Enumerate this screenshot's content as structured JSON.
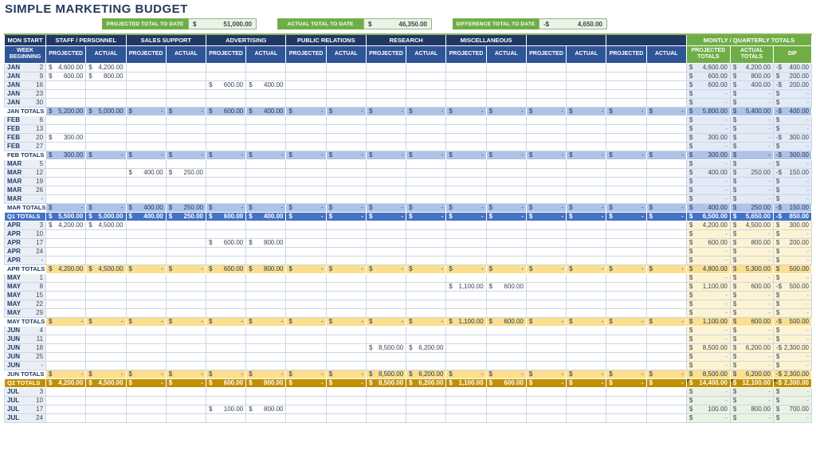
{
  "page": {
    "title": "SIMPLE MARKETING BUDGET"
  },
  "summary": [
    {
      "label": "PROJECTED TOTAL TO DATE",
      "currency": "$",
      "value": "51,000.00"
    },
    {
      "label": "ACTUAL TOTAL TO DATE",
      "currency": "$",
      "value": "46,350.00"
    },
    {
      "label": "DIFFERENCE TOTAL TO DATE",
      "currency": "-$",
      "value": "4,650.00"
    }
  ],
  "colors": {
    "header_navy": "#1F3864",
    "subheader_blue": "#2F5597",
    "accent_green": "#6FAE46",
    "q1_total_row": "#AFC3E7",
    "q1_quarter_row": "#4472C4",
    "q2_total_row": "#FBDF8E",
    "q2_quarter_row": "#BF9000",
    "q1_tint": "#E2EAF6",
    "q2_tint": "#FDF3D2",
    "q3_tint": "#EAF2E3"
  },
  "table": {
    "corner_header": {
      "line1": "MON START",
      "line2": "WEEK BEGINNING"
    },
    "groups": [
      "STAFF / PERSONNEL",
      "SALES SUPPORT",
      "ADVERTISING",
      "PUBLIC RELATIONS",
      "RESEARCH",
      "MISCELLANEOUS",
      "",
      ""
    ],
    "sub_headers": {
      "projected": "PROJECTED",
      "actual": "ACTUAL"
    },
    "totals_header": {
      "label": "MONTLY / QUARTERLY TOTALS",
      "columns": [
        "PROJECTED TOTALS",
        "ACTUAL TOTALS",
        "DIF"
      ]
    },
    "rows": [
      {
        "m": "JAN",
        "d": "2",
        "type": "week",
        "q": "q1",
        "fill": "",
        "cells": {
          "0": "4,600.00",
          "1": "4,200.00"
        },
        "totals": [
          "4,600.00",
          "4,200.00",
          "-400.00"
        ]
      },
      {
        "m": "JAN",
        "d": "9",
        "type": "week",
        "q": "q1",
        "fill": "",
        "cells": {
          "0": "600.00",
          "1": "800.00"
        },
        "totals": [
          "600.00",
          "800.00",
          "200.00"
        ]
      },
      {
        "m": "JAN",
        "d": "16",
        "type": "week",
        "q": "q1",
        "fill": "",
        "cells": {
          "4": "600.00",
          "5": "400.00"
        },
        "totals": [
          "600.00",
          "400.00",
          "-200.00"
        ]
      },
      {
        "m": "JAN",
        "d": "23",
        "type": "week",
        "q": "q1",
        "fill": "",
        "cells": {},
        "totals": [
          "-",
          "-",
          "-"
        ]
      },
      {
        "m": "JAN",
        "d": "30",
        "type": "week",
        "q": "q1",
        "fill": "",
        "cells": {},
        "totals": [
          "-",
          "-",
          "-"
        ]
      },
      {
        "m": "JAN TOTALS",
        "d": "",
        "type": "month",
        "q": "q1",
        "fill": "-",
        "cells": {
          "0": "5,200.00",
          "1": "5,000.00",
          "4": "600.00",
          "5": "400.00"
        },
        "totals": [
          "5,800.00",
          "5,400.00",
          "-400.00"
        ]
      },
      {
        "m": "FEB",
        "d": "6",
        "type": "week",
        "q": "q1",
        "fill": "",
        "cells": {},
        "totals": [
          "-",
          "-",
          "-"
        ]
      },
      {
        "m": "FEB",
        "d": "13",
        "type": "week",
        "q": "q1",
        "fill": "",
        "cells": {},
        "totals": [
          "-",
          "-",
          "-"
        ]
      },
      {
        "m": "FEB",
        "d": "20",
        "type": "week",
        "q": "q1",
        "fill": "",
        "cells": {
          "0": "300.00"
        },
        "totals": [
          "300.00",
          "-",
          "-300.00"
        ]
      },
      {
        "m": "FEB",
        "d": "27",
        "type": "week",
        "q": "q1",
        "fill": "",
        "cells": {},
        "totals": [
          "-",
          "-",
          "-"
        ]
      },
      {
        "m": "FEB TOTALS",
        "d": "",
        "type": "month",
        "q": "q1",
        "fill": "-",
        "cells": {
          "0": "300.00"
        },
        "totals": [
          "300.00",
          "-",
          "-300.00"
        ]
      },
      {
        "m": "MAR",
        "d": "5",
        "type": "week",
        "q": "q1",
        "fill": "",
        "cells": {},
        "totals": [
          "-",
          "-",
          "-"
        ]
      },
      {
        "m": "MAR",
        "d": "12",
        "type": "week",
        "q": "q1",
        "fill": "",
        "cells": {
          "2": "400.00",
          "3": "250.00"
        },
        "totals": [
          "400.00",
          "250.00",
          "-150.00"
        ]
      },
      {
        "m": "MAR",
        "d": "19",
        "type": "week",
        "q": "q1",
        "fill": "",
        "cells": {},
        "totals": [
          "-",
          "-",
          "-"
        ]
      },
      {
        "m": "MAR",
        "d": "26",
        "type": "week",
        "q": "q1",
        "fill": "",
        "cells": {},
        "totals": [
          "-",
          "-",
          "-"
        ]
      },
      {
        "m": "MAR",
        "d": "-",
        "type": "week",
        "q": "q1",
        "fill": "",
        "cells": {},
        "totals": [
          "-",
          "-",
          "-"
        ]
      },
      {
        "m": "MAR TOTALS",
        "d": "",
        "type": "month",
        "q": "q1",
        "fill": "-",
        "cells": {
          "2": "400.00",
          "3": "250.00"
        },
        "totals": [
          "400.00",
          "250.00",
          "-150.00"
        ]
      },
      {
        "m": "Q1 TOTALS",
        "d": "",
        "type": "quarter",
        "q": "q1",
        "fill": "-",
        "cells": {
          "0": "5,500.00",
          "1": "5,000.00",
          "2": "400.00",
          "3": "250.00",
          "4": "600.00",
          "5": "400.00"
        },
        "totals": [
          "6,500.00",
          "5,650.00",
          "-850.00"
        ]
      },
      {
        "m": "APR",
        "d": "3",
        "type": "week",
        "q": "q2",
        "fill": "",
        "cells": {
          "0": "4,200.00",
          "1": "4,500.00"
        },
        "totals": [
          "4,200.00",
          "4,500.00",
          "300.00"
        ]
      },
      {
        "m": "APR",
        "d": "10",
        "type": "week",
        "q": "q2",
        "fill": "",
        "cells": {},
        "totals": [
          "-",
          "-",
          "-"
        ]
      },
      {
        "m": "APR",
        "d": "17",
        "type": "week",
        "q": "q2",
        "fill": "",
        "cells": {
          "4": "600.00",
          "5": "800.00"
        },
        "totals": [
          "600.00",
          "800.00",
          "200.00"
        ]
      },
      {
        "m": "APR",
        "d": "24",
        "type": "week",
        "q": "q2",
        "fill": "",
        "cells": {},
        "totals": [
          "-",
          "-",
          "-"
        ]
      },
      {
        "m": "APR",
        "d": "-",
        "type": "week",
        "q": "q2",
        "fill": "",
        "cells": {},
        "totals": [
          "-",
          "-",
          "-"
        ]
      },
      {
        "m": "APR TOTALS",
        "d": "",
        "type": "month",
        "q": "q2",
        "fill": "-",
        "cells": {
          "0": "4,200.00",
          "1": "4,500.00",
          "4": "600.00",
          "5": "800.00"
        },
        "totals": [
          "4,800.00",
          "5,300.00",
          "500.00"
        ]
      },
      {
        "m": "MAY",
        "d": "1",
        "type": "week",
        "q": "q2",
        "fill": "",
        "cells": {},
        "totals": [
          "-",
          "-",
          "-"
        ]
      },
      {
        "m": "MAY",
        "d": "8",
        "type": "week",
        "q": "q2",
        "fill": "",
        "cells": {
          "10": "1,100.00",
          "11": "600.00"
        },
        "totals": [
          "1,100.00",
          "600.00",
          "-500.00"
        ]
      },
      {
        "m": "MAY",
        "d": "15",
        "type": "week",
        "q": "q2",
        "fill": "",
        "cells": {},
        "totals": [
          "-",
          "-",
          "-"
        ]
      },
      {
        "m": "MAY",
        "d": "22",
        "type": "week",
        "q": "q2",
        "fill": "",
        "cells": {},
        "totals": [
          "-",
          "-",
          "-"
        ]
      },
      {
        "m": "MAY",
        "d": "29",
        "type": "week",
        "q": "q2",
        "fill": "",
        "cells": {},
        "totals": [
          "-",
          "-",
          "-"
        ]
      },
      {
        "m": "MAY TOTALS",
        "d": "",
        "type": "month",
        "q": "q2",
        "fill": "-",
        "cells": {
          "10": "1,100.00",
          "11": "600.00"
        },
        "totals": [
          "1,100.00",
          "600.00",
          "-500.00"
        ]
      },
      {
        "m": "JUN",
        "d": "4",
        "type": "week",
        "q": "q2",
        "fill": "",
        "cells": {},
        "totals": [
          "-",
          "-",
          "-"
        ]
      },
      {
        "m": "JUN",
        "d": "11",
        "type": "week",
        "q": "q2",
        "fill": "",
        "cells": {},
        "totals": [
          "-",
          "-",
          "-"
        ]
      },
      {
        "m": "JUN",
        "d": "18",
        "type": "week",
        "q": "q2",
        "fill": "",
        "cells": {
          "8": "8,500.00",
          "9": "6,200.00"
        },
        "totals": [
          "8,500.00",
          "6,200.00",
          "-2,300.00"
        ]
      },
      {
        "m": "JUN",
        "d": "25",
        "type": "week",
        "q": "q2",
        "fill": "",
        "cells": {},
        "totals": [
          "-",
          "-",
          "-"
        ]
      },
      {
        "m": "JUN",
        "d": "-",
        "type": "week",
        "q": "q2",
        "fill": "",
        "cells": {},
        "totals": [
          "-",
          "-",
          "-"
        ]
      },
      {
        "m": "JUN TOTALS",
        "d": "",
        "type": "month",
        "q": "q2",
        "fill": "-",
        "cells": {
          "8": "8,500.00",
          "9": "6,200.00"
        },
        "totals": [
          "8,500.00",
          "6,200.00",
          "-2,300.00"
        ]
      },
      {
        "m": "Q2 TOTALS",
        "d": "",
        "type": "quarter",
        "q": "q2",
        "fill": "-",
        "corner": true,
        "cells": {
          "0": "4,200.00",
          "1": "4,500.00",
          "4": "600.00",
          "5": "800.00",
          "8": "8,500.00",
          "9": "6,200.00",
          "10": "1,100.00",
          "11": "600.00"
        },
        "totals": [
          "14,400.00",
          "12,100.00",
          "-2,300.00"
        ]
      },
      {
        "m": "JUL",
        "d": "3",
        "type": "week",
        "q": "q3",
        "fill": "",
        "cells": {},
        "totals": [
          "-",
          "-",
          "-"
        ]
      },
      {
        "m": "JUL",
        "d": "10",
        "type": "week",
        "q": "q3",
        "fill": "",
        "cells": {},
        "totals": [
          "-",
          "-",
          "-"
        ]
      },
      {
        "m": "JUL",
        "d": "17",
        "type": "week",
        "q": "q3",
        "fill": "",
        "cells": {
          "4": "100.00",
          "5": "800.00"
        },
        "totals": [
          "100.00",
          "800.00",
          "700.00"
        ]
      },
      {
        "m": "JUL",
        "d": "24",
        "type": "week",
        "q": "q3",
        "fill": "",
        "cells": {},
        "totals": [
          "-",
          "-",
          "-"
        ]
      }
    ]
  }
}
